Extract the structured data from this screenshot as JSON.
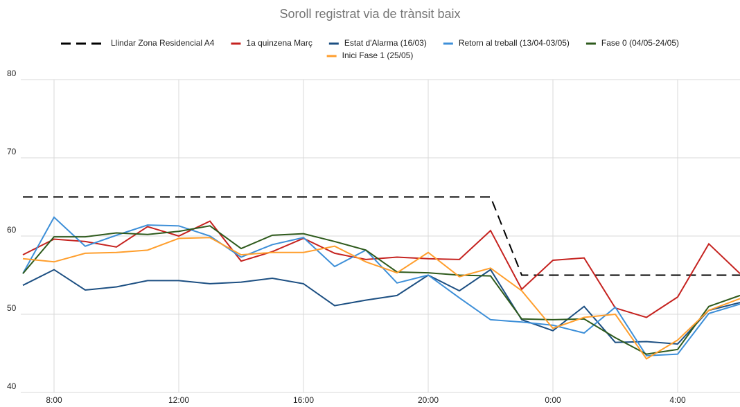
{
  "chart_data": {
    "type": "line",
    "title": "Soroll registrat via de trànsit baix",
    "categories": [
      null,
      "8:00",
      null,
      null,
      null,
      "12:00",
      null,
      null,
      null,
      "16:00",
      null,
      null,
      null,
      "20:00",
      null,
      null,
      null,
      "0:00",
      null,
      null,
      null,
      "4:00",
      null,
      null
    ],
    "series": [
      {
        "name": "Llindar Zona Residencial A4",
        "color": "#000000",
        "line_style": "dashed",
        "values": [
          65,
          65,
          65,
          65,
          65,
          65,
          65,
          65,
          65,
          65,
          65,
          65,
          65,
          65,
          65,
          65,
          55,
          55,
          55,
          55,
          55,
          55,
          55,
          55
        ]
      },
      {
        "name": "1a quinzena Març",
        "color": "#c5221f",
        "values": [
          57.6,
          59.6,
          59.3,
          58.6,
          61.2,
          60.0,
          61.9,
          56.8,
          58.0,
          59.7,
          57.8,
          57.0,
          57.3,
          57.1,
          57.0,
          60.7,
          53.2,
          56.9,
          57.2,
          50.8,
          49.6,
          52.2,
          59.0,
          55.2
        ]
      },
      {
        "name": "Estat d'Alarma (16/03)",
        "color": "#1c4f82",
        "values": [
          53.7,
          55.7,
          53.1,
          53.5,
          54.3,
          54.3,
          53.9,
          54.1,
          54.6,
          53.9,
          51.1,
          51.8,
          52.4,
          55.0,
          53.0,
          55.7,
          49.3,
          47.9,
          51.0,
          46.4,
          46.5,
          46.2,
          50.5,
          51.5
        ]
      },
      {
        "name": "Retorn al treball (13/04-03/05)",
        "color": "#3d8fd8",
        "values": [
          55.2,
          62.4,
          58.7,
          60.1,
          61.4,
          61.3,
          60.0,
          57.3,
          58.9,
          59.8,
          56.1,
          58.2,
          54.0,
          55.0,
          52.1,
          49.3,
          49.0,
          48.6,
          47.6,
          50.9,
          44.7,
          44.9,
          50.1,
          51.3
        ]
      },
      {
        "name": "Fase 0 (04/05-24/05)",
        "color": "#2e5a1c",
        "values": [
          55.2,
          59.9,
          59.9,
          60.4,
          60.2,
          60.6,
          61.3,
          58.4,
          60.1,
          60.3,
          59.3,
          58.2,
          55.4,
          55.3,
          55.0,
          54.9,
          49.4,
          49.3,
          49.4,
          47.0,
          44.9,
          45.5,
          51.0,
          52.4
        ]
      },
      {
        "name": "Inici Fase 1 (25/05)",
        "color": "#ff9e2c",
        "values": [
          57.1,
          56.7,
          57.8,
          57.9,
          58.2,
          59.7,
          59.8,
          57.6,
          57.9,
          57.9,
          58.7,
          56.7,
          55.3,
          57.9,
          54.8,
          55.9,
          53.0,
          48.2,
          49.6,
          50.0,
          44.3,
          46.7,
          50.5,
          52.0
        ]
      }
    ],
    "ylim": [
      40,
      80
    ],
    "yticks": [
      40,
      50,
      60,
      70,
      80
    ],
    "grid": true,
    "legend": "top"
  }
}
